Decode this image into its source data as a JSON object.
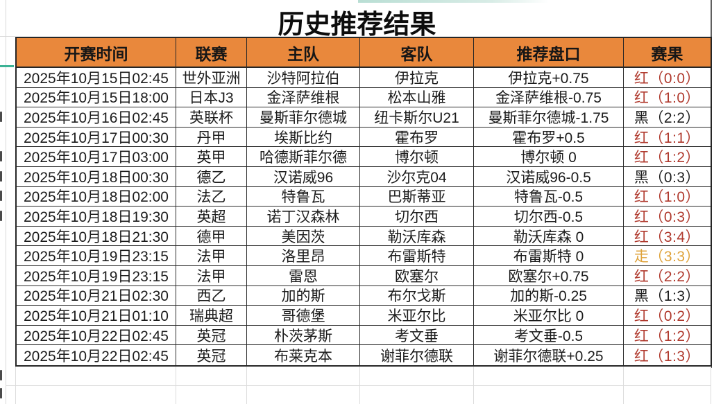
{
  "app": {
    "title": "历史推荐结果"
  },
  "colors": {
    "header_bg": "#e9883c",
    "red": "#b03a2e",
    "black": "#1f1f1f",
    "gold": "#dfa33c",
    "border_dark": "#262626",
    "grid_light": "#dcdcdc",
    "teal": "#3cb295"
  },
  "table": {
    "columns": [
      {
        "key": "time",
        "label": "开赛时间"
      },
      {
        "key": "league",
        "label": "联赛"
      },
      {
        "key": "home",
        "label": "主队"
      },
      {
        "key": "away",
        "label": "客队"
      },
      {
        "key": "handicap",
        "label": "推荐盘口"
      },
      {
        "key": "result",
        "label": "赛果"
      }
    ],
    "rows": [
      {
        "time": "2025年10月15日02:45",
        "league": "世外亚洲",
        "home": "沙特阿拉伯",
        "away": "伊拉克",
        "handicap": "伊拉克+0.75",
        "result": {
          "verdict": "红",
          "score": "（0:0）",
          "color": "red"
        }
      },
      {
        "time": "2025年10月15日18:00",
        "league": "日本J3",
        "home": "金泽萨维根",
        "away": "松本山雅",
        "handicap": "金泽萨维根-0.75",
        "result": {
          "verdict": "红",
          "score": "（1:0）",
          "color": "red"
        }
      },
      {
        "time": "2025年10月16日02:45",
        "league": "英联杯",
        "home": "曼斯菲尔德城",
        "away": "纽卡斯尔U21",
        "handicap": "曼斯菲尔德城-1.75",
        "result": {
          "verdict": "黑",
          "score": "（2:2）",
          "color": "black"
        }
      },
      {
        "time": "2025年10月17日00:30",
        "league": "丹甲",
        "home": "埃斯比约",
        "away": "霍布罗",
        "handicap": "霍布罗+0.5",
        "result": {
          "verdict": "红",
          "score": "（1:1）",
          "color": "red"
        }
      },
      {
        "time": "2025年10月17日03:00",
        "league": "英甲",
        "home": "哈德斯菲尔德",
        "away": "博尔顿",
        "handicap": "博尔顿 0",
        "result": {
          "verdict": "红",
          "score": "（1:2）",
          "color": "red"
        }
      },
      {
        "time": "2025年10月18日00:30",
        "league": "德乙",
        "home": "汉诺威96",
        "away": "沙尔克04",
        "handicap": "汉诺威96-0.5",
        "result": {
          "verdict": "黑",
          "score": "（0:3）",
          "color": "black"
        }
      },
      {
        "time": "2025年10月18日02:00",
        "league": "法乙",
        "home": "特鲁瓦",
        "away": "巴斯蒂亚",
        "handicap": "特鲁瓦-0.5",
        "result": {
          "verdict": "红",
          "score": "（1:0）",
          "color": "red"
        }
      },
      {
        "time": "2025年10月18日19:30",
        "league": "英超",
        "home": "诺丁汉森林",
        "away": "切尔西",
        "handicap": "切尔西-0.5",
        "result": {
          "verdict": "红",
          "score": "（0:3）",
          "color": "red"
        }
      },
      {
        "time": "2025年10月18日21:30",
        "league": "德甲",
        "home": "美因茨",
        "away": "勒沃库森",
        "handicap": "勒沃库森 0",
        "result": {
          "verdict": "红",
          "score": "（3:4）",
          "color": "red"
        }
      },
      {
        "time": "2025年10月19日23:15",
        "league": "法甲",
        "home": "洛里昂",
        "away": "布雷斯特",
        "handicap": "布雷斯特 0",
        "result": {
          "verdict": "走",
          "score": "（3:3）",
          "color": "gold"
        }
      },
      {
        "time": "2025年10月19日23:15",
        "league": "法甲",
        "home": "雷恩",
        "away": "欧塞尔",
        "handicap": "欧塞尔+0.75",
        "result": {
          "verdict": "红",
          "score": "（2:2）",
          "color": "red"
        }
      },
      {
        "time": "2025年10月21日02:30",
        "league": "西乙",
        "home": "加的斯",
        "away": "布尔戈斯",
        "handicap": "加的斯-0.25",
        "result": {
          "verdict": "黑",
          "score": "（1:3）",
          "color": "black"
        }
      },
      {
        "time": "2025年10月21日01:10",
        "league": "瑞典超",
        "home": "哥德堡",
        "away": "米亚尔比",
        "handicap": "米亚尔比 0",
        "result": {
          "verdict": "红",
          "score": "（0:2）",
          "color": "red"
        }
      },
      {
        "time": "2025年10月22日02:45",
        "league": "英冠",
        "home": "朴茨茅斯",
        "away": "考文垂",
        "handicap": "考文垂-0.5",
        "result": {
          "verdict": "红",
          "score": "（1:2）",
          "color": "red"
        }
      },
      {
        "time": "2025年10月22日02:45",
        "league": "英冠",
        "home": "布莱克本",
        "away": "谢菲尔德联",
        "handicap": "谢菲尔德联+0.25",
        "result": {
          "verdict": "红",
          "score": "（1:3）",
          "color": "red"
        }
      }
    ]
  }
}
